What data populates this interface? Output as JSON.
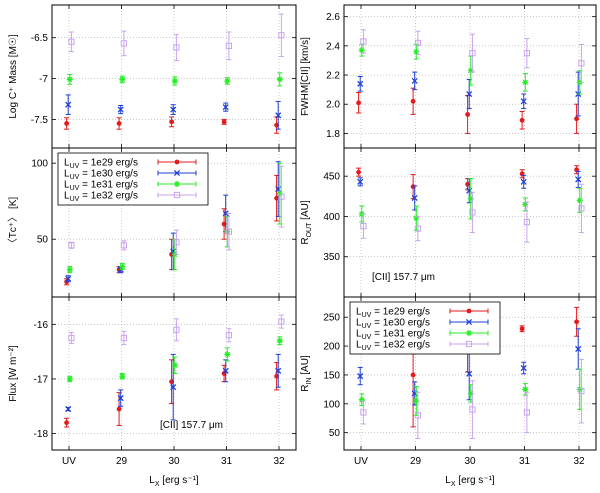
{
  "chart_data": [
    {
      "id": "mass",
      "type": "scatter",
      "ylabel": "Log C⁺ Mass [M☉]",
      "ylim": [
        -7.85,
        -6.1
      ],
      "yticks": [
        -7.5,
        -7,
        -6.5
      ],
      "ytick_labels": [
        "-7.5",
        "-7",
        "-6.5"
      ],
      "xlabel": "",
      "series": [
        {
          "name": "L_UV = 1e29 erg/s",
          "values": [
            -7.55,
            -7.55,
            -7.53,
            -7.53,
            -7.57
          ],
          "errors": [
            0.07,
            0.07,
            0.06,
            0.03,
            0.1
          ]
        },
        {
          "name": "L_UV = 1e30 erg/s",
          "values": [
            -7.32,
            -7.38,
            -7.38,
            -7.35,
            -7.45
          ],
          "errors": [
            0.12,
            0.05,
            0.06,
            0.05,
            0.17
          ]
        },
        {
          "name": "L_UV = 1e31 erg/s",
          "values": [
            -7.01,
            -7.01,
            -7.03,
            -7.03,
            -7.01
          ],
          "errors": [
            0.06,
            0.04,
            0.05,
            0.04,
            0.08
          ]
        },
        {
          "name": "L_UV = 1e32 erg/s",
          "values": [
            -6.55,
            -6.57,
            -6.62,
            -6.6,
            -6.47
          ],
          "errors": [
            0.12,
            0.15,
            0.16,
            0.17,
            0.26
          ]
        }
      ]
    },
    {
      "id": "fwhm",
      "type": "scatter",
      "ylabel": "FWHM[CII] [km/s]",
      "ylim": [
        1.7,
        2.68
      ],
      "yticks": [
        1.8,
        2.0,
        2.2,
        2.4,
        2.6
      ],
      "ytick_labels": [
        "1.8",
        "2.0",
        "2.2",
        "2.4",
        "2.6"
      ],
      "xlabel": "",
      "series": [
        {
          "name": "L_UV = 1e29 erg/s",
          "values": [
            2.01,
            2.02,
            1.93,
            1.89,
            1.9
          ],
          "errors": [
            0.07,
            0.09,
            0.13,
            0.06,
            0.1
          ]
        },
        {
          "name": "L_UV = 1e30 erg/s",
          "values": [
            2.14,
            2.16,
            2.07,
            2.02,
            2.07
          ],
          "errors": [
            0.05,
            0.06,
            0.1,
            0.05,
            0.15
          ]
        },
        {
          "name": "L_UV = 1e31 erg/s",
          "values": [
            2.37,
            2.36,
            2.23,
            2.15,
            2.15
          ],
          "errors": [
            0.04,
            0.05,
            0.1,
            0.06,
            0.08
          ]
        },
        {
          "name": "L_UV = 1e32 erg/s",
          "values": [
            2.43,
            2.42,
            2.35,
            2.35,
            2.28
          ],
          "errors": [
            0.08,
            0.08,
            0.13,
            0.1,
            0.13
          ]
        }
      ]
    },
    {
      "id": "tc",
      "type": "scatter",
      "ylabel": "〈Tᴄ⁺〉 [K]",
      "ylim": [
        12,
        110
      ],
      "yticks": [
        50,
        100
      ],
      "ytick_labels": [
        "50",
        "100"
      ],
      "xlabel": "",
      "series": [
        {
          "name": "L_UV = 1e29 erg/s",
          "values": [
            22,
            30,
            40,
            60,
            77
          ],
          "errors": [
            2,
            2,
            10,
            10,
            15
          ]
        },
        {
          "name": "L_UV = 1e30 erg/s",
          "values": [
            24,
            30,
            42,
            67,
            83
          ],
          "errors": [
            2,
            2,
            12,
            12,
            18
          ]
        },
        {
          "name": "L_UV = 1e31 erg/s",
          "values": [
            30,
            32,
            40,
            55,
            80
          ],
          "errors": [
            2,
            2,
            10,
            10,
            20
          ]
        },
        {
          "name": "L_UV = 1e32 erg/s",
          "values": [
            46,
            46,
            48,
            55,
            78
          ],
          "errors": [
            2,
            3,
            8,
            12,
            20
          ]
        }
      ],
      "legend": [
        "L_UV = 1e29 erg/s",
        "L_UV = 1e30 erg/s",
        "L_UV = 1e31 erg/s",
        "L_UV = 1e32 erg/s"
      ]
    },
    {
      "id": "rout",
      "type": "scatter",
      "ylabel": "R_OUT [AU]",
      "ylim": [
        300,
        485
      ],
      "yticks": [
        350,
        400,
        450
      ],
      "ytick_labels": [
        "350",
        "400",
        "450"
      ],
      "xlabel": "",
      "annotation": "[CII] 157.7 μm",
      "series": [
        {
          "name": "L_UV = 1e29 erg/s",
          "values": [
            455,
            437,
            440,
            453,
            458
          ],
          "errors": [
            5,
            15,
            7,
            5,
            5
          ]
        },
        {
          "name": "L_UV = 1e30 erg/s",
          "values": [
            443,
            423,
            432,
            443,
            446
          ],
          "errors": [
            5,
            15,
            15,
            8,
            10
          ]
        },
        {
          "name": "L_UV = 1e31 erg/s",
          "values": [
            403,
            398,
            422,
            415,
            420
          ],
          "errors": [
            10,
            15,
            25,
            8,
            15
          ]
        },
        {
          "name": "L_UV = 1e32 erg/s",
          "values": [
            388,
            385,
            405,
            393,
            410
          ],
          "errors": [
            15,
            15,
            25,
            25,
            30
          ]
        }
      ]
    },
    {
      "id": "flux",
      "type": "scatter",
      "ylabel": "Flux [W m⁻²]",
      "ylim": [
        -18.3,
        -15.5
      ],
      "yticks": [
        -18,
        -17,
        -16
      ],
      "ytick_labels": [
        "-18",
        "-17",
        "-16"
      ],
      "xlabel": "L_X [erg s⁻¹]",
      "xtick_labels": [
        "UV",
        "29",
        "30",
        "31",
        "32"
      ],
      "annotation": "[CII] 157.7 μm",
      "series": [
        {
          "name": "L_UV = 1e29 erg/s",
          "values": [
            -17.8,
            -17.55,
            -17.05,
            -16.9,
            -16.95
          ],
          "errors": [
            0.08,
            0.3,
            0.4,
            0.15,
            0.25
          ]
        },
        {
          "name": "L_UV = 1e30 erg/s",
          "values": [
            -17.55,
            -17.35,
            -17.15,
            -16.85,
            -16.85
          ],
          "errors": [
            0.03,
            0.15,
            0.6,
            0.2,
            0.3
          ]
        },
        {
          "name": "L_UV = 1e31 erg/s",
          "values": [
            -17.0,
            -16.95,
            -16.75,
            -16.55,
            -16.3
          ],
          "errors": [
            0.05,
            0.05,
            0.15,
            0.12,
            0.07
          ]
        },
        {
          "name": "L_UV = 1e32 erg/s",
          "values": [
            -16.25,
            -16.25,
            -16.1,
            -16.2,
            -15.95
          ],
          "errors": [
            0.1,
            0.12,
            0.2,
            0.12,
            0.12
          ]
        }
      ]
    },
    {
      "id": "rin",
      "type": "scatter",
      "ylabel": "R_IN [AU]",
      "ylim": [
        20,
        285
      ],
      "yticks": [
        50,
        100,
        150,
        200,
        250
      ],
      "ytick_labels": [
        "50",
        "100",
        "150",
        "200",
        "250"
      ],
      "xlabel": "L_X [erg s⁻¹]",
      "xtick_labels": [
        "UV",
        "29",
        "30",
        "31",
        "32"
      ],
      "series": [
        {
          "name": "L_UV = 1e29 erg/s",
          "values": [
            222,
            150,
            205,
            230,
            242
          ],
          "errors": [
            5,
            90,
            50,
            5,
            25
          ]
        },
        {
          "name": "L_UV = 1e30 erg/s",
          "values": [
            148,
            118,
            152,
            162,
            195
          ],
          "errors": [
            15,
            20,
            45,
            10,
            35
          ]
        },
        {
          "name": "L_UV = 1e31 erg/s",
          "values": [
            107,
            105,
            118,
            125,
            125
          ],
          "errors": [
            10,
            25,
            15,
            10,
            35
          ]
        },
        {
          "name": "L_UV = 1e32 erg/s",
          "values": [
            85,
            80,
            90,
            85,
            122
          ],
          "errors": [
            20,
            40,
            50,
            35,
            55
          ]
        }
      ],
      "legend": [
        "L_UV = 1e29 erg/s",
        "L_UV = 1e30 erg/s",
        "L_UV = 1e31 erg/s",
        "L_UV = 1e32 erg/s"
      ]
    }
  ],
  "legend_labels": [
    "L",
    "UV",
    " = 1e29 erg/s",
    " = 1e30 erg/s",
    " = 1e31 erg/s",
    " = 1e32 erg/s"
  ],
  "colors": [
    "#e41a1c",
    "#1f3fd6",
    "#22ee22",
    "#c8a4ee"
  ],
  "markers": [
    "dot",
    "x",
    "star",
    "square"
  ]
}
